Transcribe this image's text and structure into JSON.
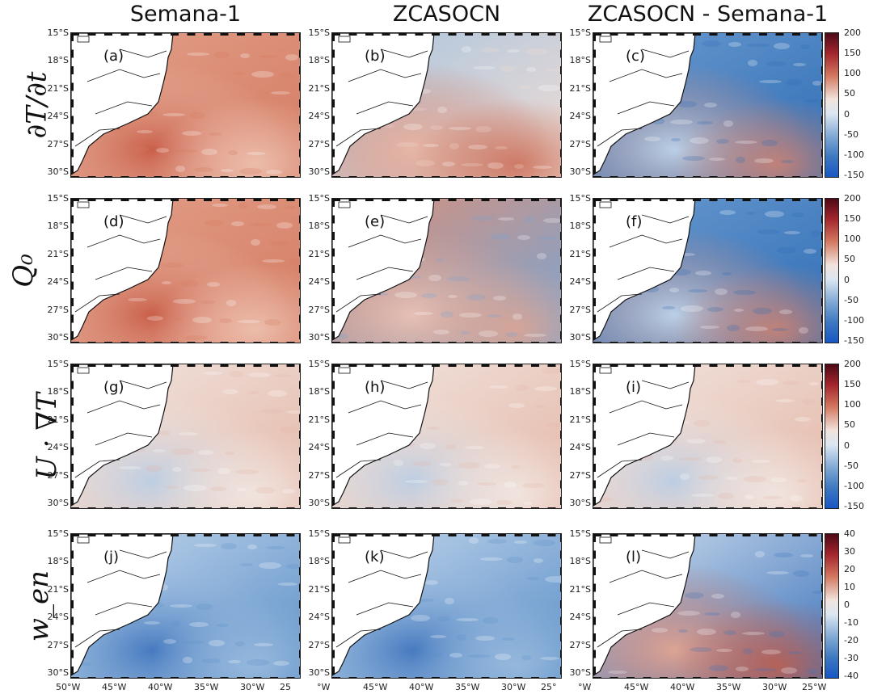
{
  "columns": [
    "Semana-1",
    "ZCASOCN",
    "ZCASOCN - Semana-1"
  ],
  "rows": [
    {
      "label": "∂T/∂t",
      "panels": [
        "(a)",
        "(b)",
        "(c)"
      ],
      "colorbar_ticks": [
        "200",
        "150",
        "100",
        "50",
        "0",
        "-50",
        "-100",
        "-150"
      ],
      "styles": [
        "warm",
        "mixed",
        "cool"
      ]
    },
    {
      "label": "Q₀",
      "panels": [
        "(d)",
        "(e)",
        "(f)"
      ],
      "colorbar_ticks": [
        "200",
        "150",
        "100",
        "50",
        "0",
        "-50",
        "-100",
        "-150"
      ],
      "styles": [
        "warm",
        "warmcool",
        "cool"
      ]
    },
    {
      "label": "U · ∇T",
      "panels": [
        "(g)",
        "(h)",
        "(i)"
      ],
      "colorbar_ticks": [
        "200",
        "150",
        "100",
        "50",
        "0",
        "-50",
        "-100",
        "-150"
      ],
      "styles": [
        "neutral",
        "neutral",
        "neutral"
      ]
    },
    {
      "label": "w_en",
      "panels": [
        "(j)",
        "(k)",
        "(l)"
      ],
      "colorbar_ticks": [
        "40",
        "30",
        "20",
        "10",
        "0",
        "-10",
        "-20",
        "-30",
        "-40"
      ],
      "styles": [
        "cold",
        "cold",
        "diff"
      ]
    }
  ],
  "lat_labels": [
    "15°S",
    "18°S",
    "21°S",
    "24°S",
    "27°S",
    "30°S"
  ],
  "lon_labels": [
    [
      "50°W",
      "45°W",
      "40°W",
      "35°W",
      "30°W",
      "25"
    ],
    [
      "°W",
      "45°W",
      "40°W",
      "35°W",
      "30°W",
      "25°"
    ],
    [
      "°W",
      "45°W",
      "40°W",
      "35°W",
      "30°W",
      "25°W"
    ]
  ],
  "colors": {
    "warm": "#d8826a",
    "cool": "#4f8bc4",
    "neutral": "#f2ece8",
    "deep_blue": "#1f3f9a",
    "deep_red": "#6b0d1a"
  }
}
